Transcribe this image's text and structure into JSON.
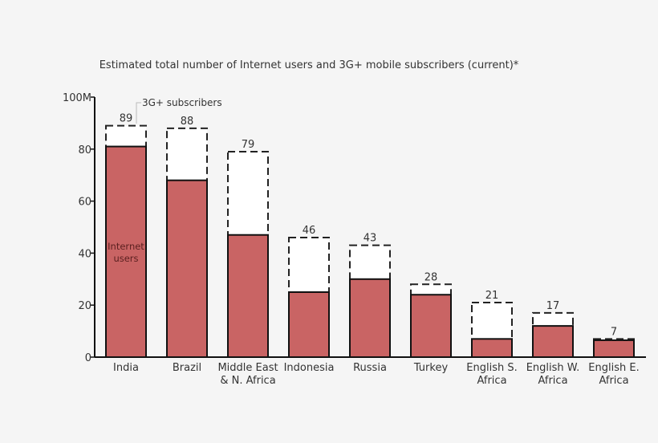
{
  "chart_data": {
    "type": "bar",
    "title": "Estimated total number of Internet users and 3G+ mobile subscribers (current)*",
    "xlabel": "",
    "ylabel": "",
    "ylim": [
      0,
      100
    ],
    "y_ticks": [
      "0",
      "20",
      "40",
      "60",
      "80",
      "100M"
    ],
    "y_tick_values": [
      0,
      20,
      40,
      60,
      80,
      100
    ],
    "grid": false,
    "categories": [
      [
        "India"
      ],
      [
        "Brazil"
      ],
      [
        "Middle East",
        "& N. Africa"
      ],
      [
        "Indonesia"
      ],
      [
        "Russia"
      ],
      [
        "Turkey"
      ],
      [
        "English S.",
        "Africa"
      ],
      [
        "English W.",
        "Africa"
      ],
      [
        "English E.",
        "Africa"
      ]
    ],
    "series": [
      {
        "name": "Internet users",
        "style": "filled",
        "color": "#c96464",
        "values": [
          81,
          68,
          47,
          25,
          30,
          24,
          7,
          12,
          6.5
        ]
      },
      {
        "name": "3G+ subscribers",
        "style": "dashed-outline",
        "color": "#ffffff",
        "values": [
          89,
          88,
          79,
          46,
          43,
          28,
          21,
          17,
          7
        ]
      }
    ],
    "data_labels": [
      "89",
      "88",
      "79",
      "46",
      "43",
      "28",
      "21",
      "17",
      "7"
    ],
    "annotations": {
      "internet_users": [
        "Internet",
        "users"
      ],
      "subscribers": "3G+ subscribers"
    }
  }
}
